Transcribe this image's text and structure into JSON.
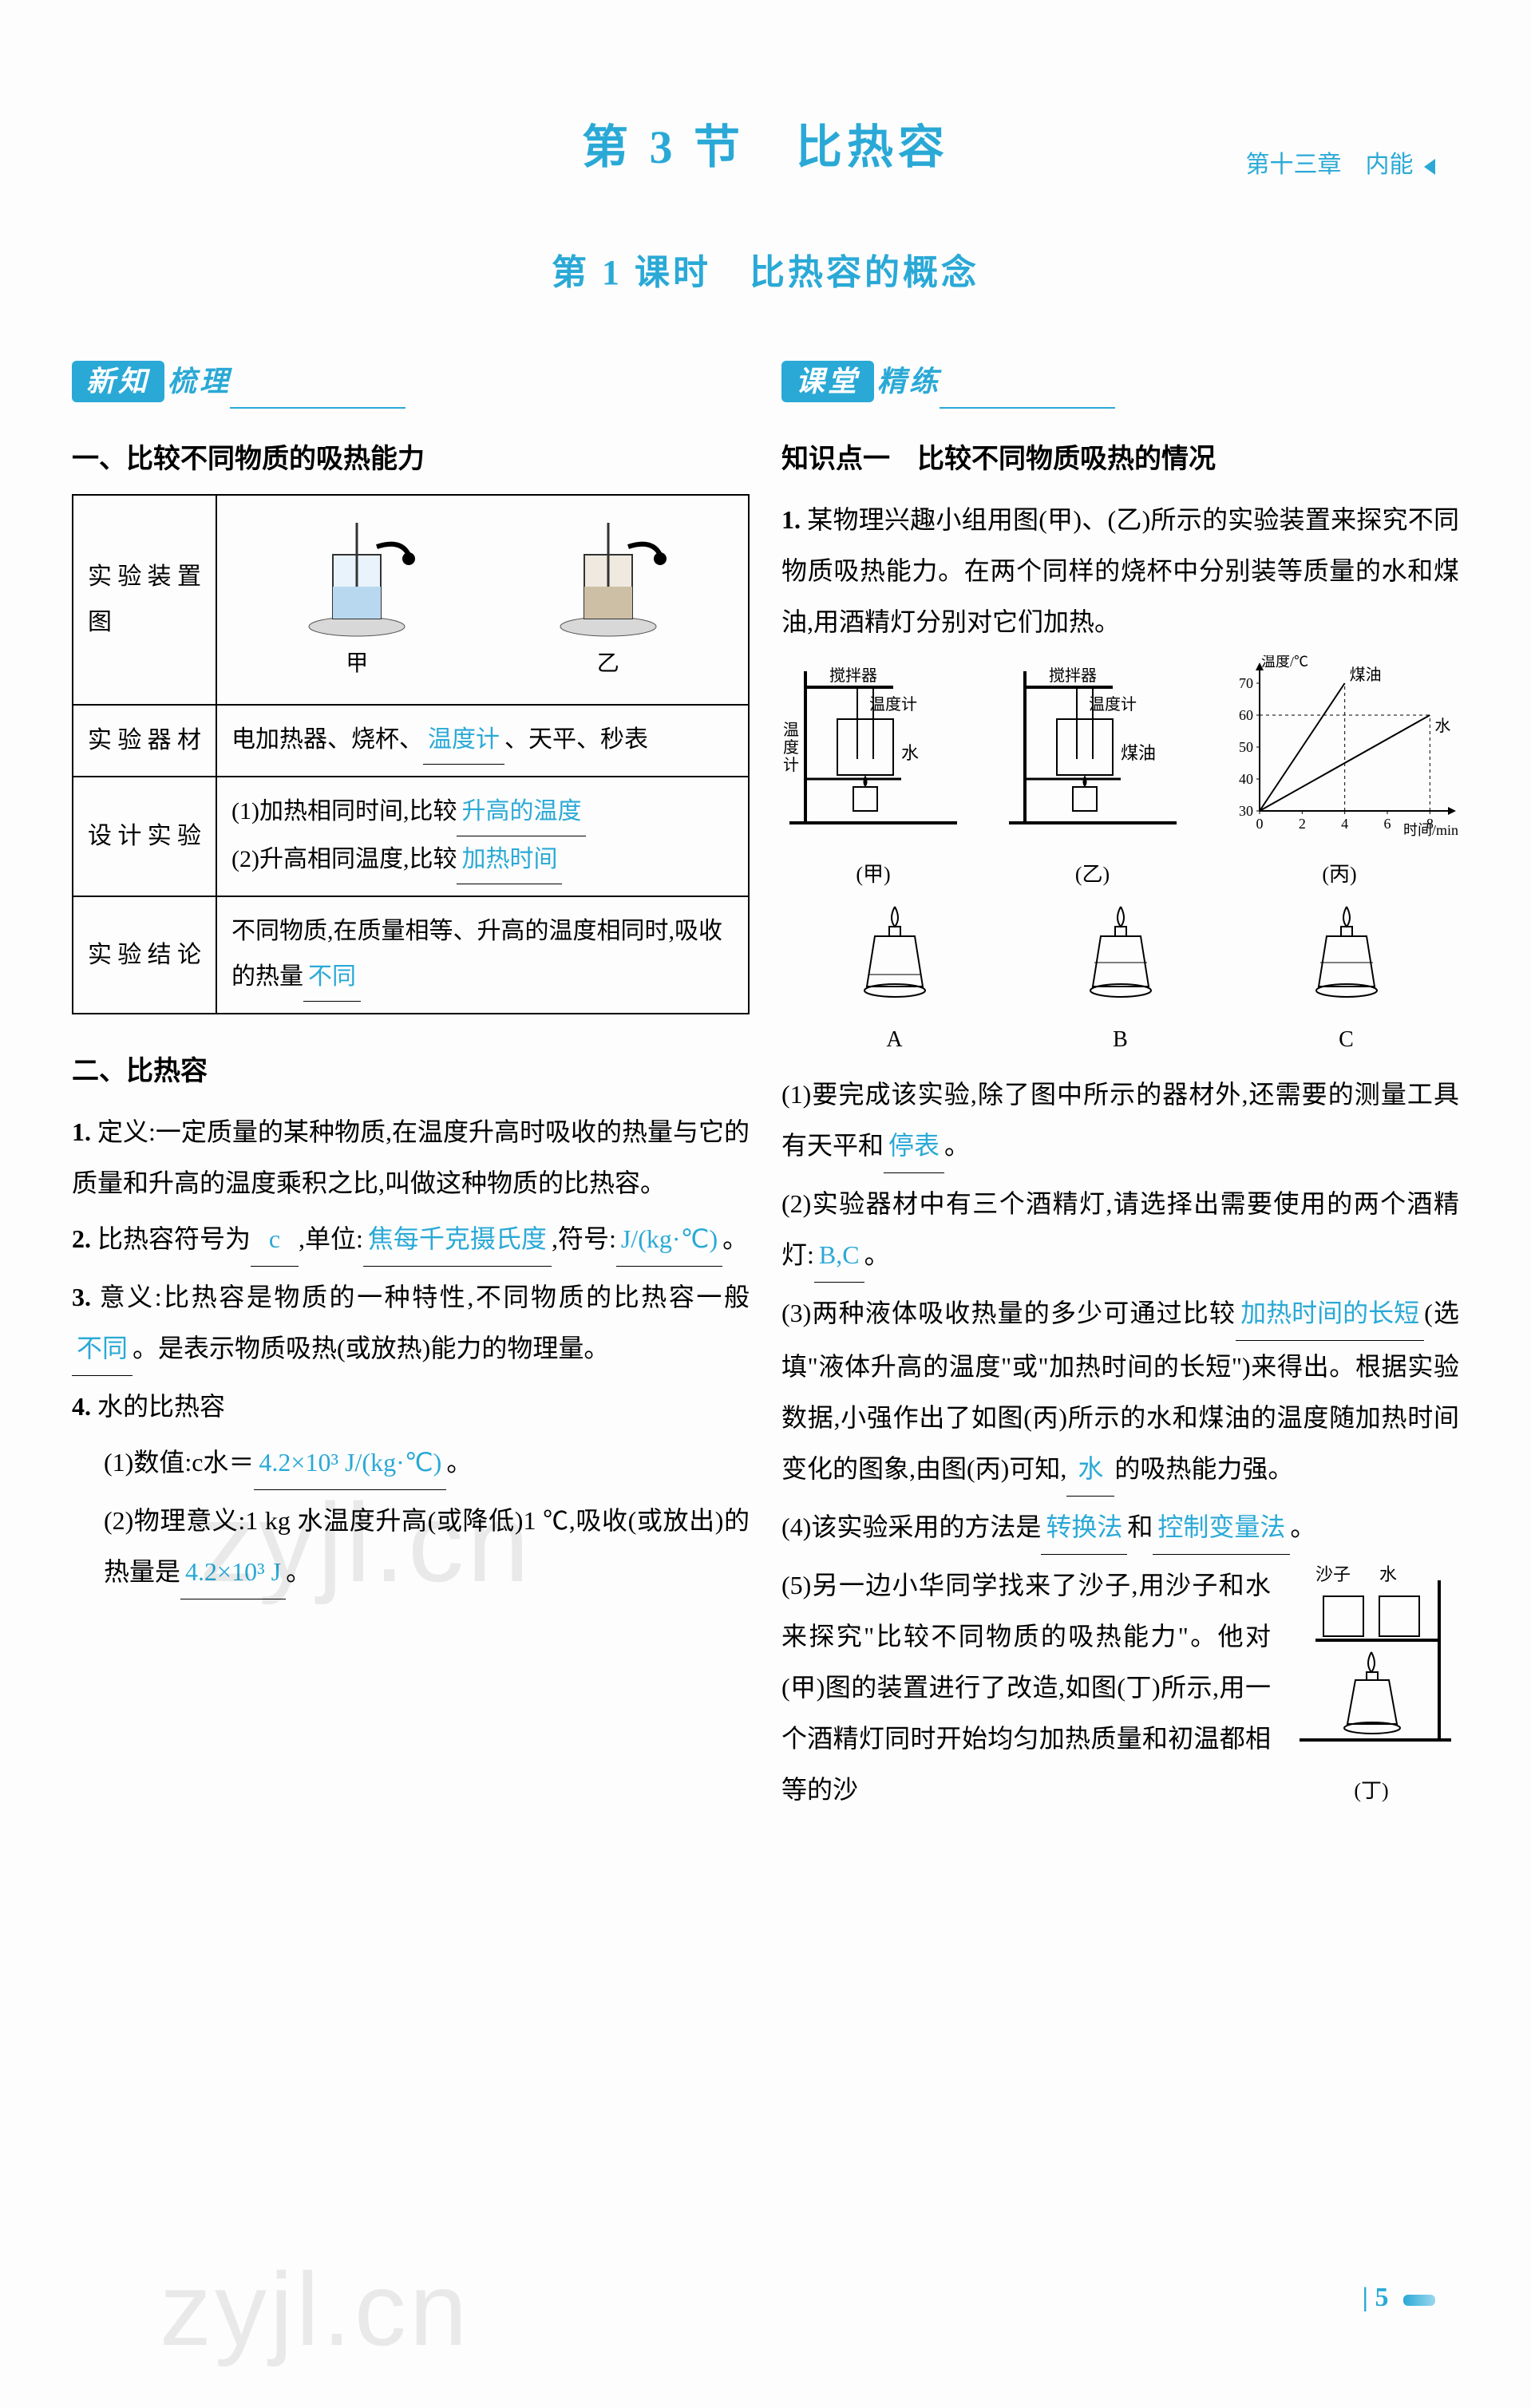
{
  "header": {
    "chapter": "第十三章　内能"
  },
  "titles": {
    "main": "第 3 节　比热容",
    "sub": "第 1 课时　比热容的概念"
  },
  "badges": {
    "left_box": "新知",
    "left_tail": "梳理",
    "right_box": "课堂",
    "right_tail": "精练"
  },
  "left": {
    "h1": "一、比较不同物质的吸热能力",
    "table": {
      "rows": [
        {
          "label": "实验装置图",
          "fig_labels": [
            "甲",
            "乙"
          ]
        },
        {
          "label": "实验器材",
          "text_pre": "电加热器、烧杯、",
          "blank1": "温度计",
          "text_mid": "、天平、秒表"
        },
        {
          "label": "设计实验",
          "line1_pre": "(1)加热相同时间,比较",
          "line1_blank": "升高的温度",
          "line2_pre": "(2)升高相同温度,比较",
          "line2_blank": "加热时间"
        },
        {
          "label": "实验结论",
          "text_pre": "不同物质,在质量相等、升高的温度相同时,吸收的热量",
          "blank": "不同"
        }
      ]
    },
    "h2": "二、比热容",
    "items": [
      {
        "n": "1.",
        "pre": "定义:一定质量的某种物质,在温度升高时吸收的热量与它的质量和升高的温度乘积之比,叫做这种物质的比热容。"
      },
      {
        "n": "2.",
        "pre": "比热容符号为",
        "b1": "c",
        "mid1": ",单位:",
        "b2": "焦每千克摄氏度",
        "mid2": ",符号:",
        "b3": "J/(kg·℃)",
        "tail": "。"
      },
      {
        "n": "3.",
        "pre": "意义:比热容是物质的一种特性,不同物质的比热容一般",
        "b1": "不同",
        "tail": "。是表示物质吸热(或放热)能力的物理量。"
      },
      {
        "n": "4.",
        "pre": "水的比热容",
        "sub": [
          {
            "pre": "(1)数值:c水＝",
            "b": "4.2×10³ J/(kg·℃)",
            "tail": "。"
          },
          {
            "pre": "(2)物理意义:1 kg 水温度升高(或降低)1 ℃,吸收(或放出)的热量是",
            "b": "4.2×10³ J",
            "tail": "。"
          }
        ]
      }
    ]
  },
  "right": {
    "kp_title": "知识点一　比较不同物质吸热的情况",
    "q1_intro": "某物理兴趣小组用图(甲)、(乙)所示的实验装置来探究不同物质吸热能力。在两个同样的烧杯中分别装等质量的水和煤油,用酒精灯分别对它们加热。",
    "fig_labels": {
      "jia": "(甲)",
      "yi": "(乙)",
      "bing": "(丙)",
      "ding": "(丁)"
    },
    "fig_text": {
      "stirrer": "搅拌器",
      "thermo": "温度计",
      "water": "水",
      "keyou": "煤油",
      "y_axis": "温度/℃",
      "x_axis": "时间/min"
    },
    "chart": {
      "type": "line",
      "y_ticks": [
        30,
        40,
        50,
        60,
        70
      ],
      "x_ticks": [
        0,
        2,
        4,
        6,
        8
      ],
      "ylim": [
        30,
        75
      ],
      "xlim": [
        0,
        9
      ],
      "series": [
        {
          "name": "煤油",
          "points": [
            [
              0,
              30
            ],
            [
              4,
              70
            ]
          ],
          "color": "#000000"
        },
        {
          "name": "水",
          "points": [
            [
              0,
              30
            ],
            [
              8,
              60
            ]
          ],
          "color": "#000000"
        }
      ],
      "dash_lines": [
        {
          "from": [
            0,
            60
          ],
          "to": [
            8,
            60
          ]
        },
        {
          "from": [
            8,
            30
          ],
          "to": [
            8,
            60
          ]
        },
        {
          "from": [
            4,
            30
          ],
          "to": [
            4,
            70
          ]
        }
      ],
      "grid_color": "#000000",
      "background_color": "#ffffff"
    },
    "lamp_labels": [
      "A",
      "B",
      "C"
    ],
    "q1_parts": [
      {
        "pre": "(1)要完成该实验,除了图中所示的器材外,还需要的测量工具有天平和",
        "b": "停表",
        "tail": "。"
      },
      {
        "pre": "(2)实验器材中有三个酒精灯,请选择出需要使用的两个酒精灯:",
        "b": "B,C",
        "tail": "。"
      },
      {
        "pre": "(3)两种液体吸收热量的多少可通过比较",
        "b": "加热时间的长短",
        "mid": "(选填\"液体升高的温度\"或\"加热时间的长短\")来得出。根据实验数据,小强作出了如图(丙)所示的水和煤油的温度随加热时间变化的图象,由图(丙)可知,",
        "b2": "水",
        "tail": "的吸热能力强。"
      },
      {
        "pre": "(4)该实验采用的方法是",
        "b": "转换法",
        "mid": "和",
        "b2": "控制变量法",
        "tail": "。"
      },
      {
        "pre": "(5)另一边小华同学找来了沙子,用沙子和水来探究\"比较不同物质的吸热能力\"。他对(甲)图的装置进行了改造,如图(丁)所示,用一个酒精灯同时开始均匀加热质量和初温都相等的沙"
      }
    ],
    "ding_labels": {
      "sand": "沙子",
      "water": "水"
    }
  },
  "page_number": "5",
  "colors": {
    "accent": "#2aa9d6",
    "answer": "#2aa9d6",
    "text": "#000000",
    "background": "#fdfdfd"
  }
}
